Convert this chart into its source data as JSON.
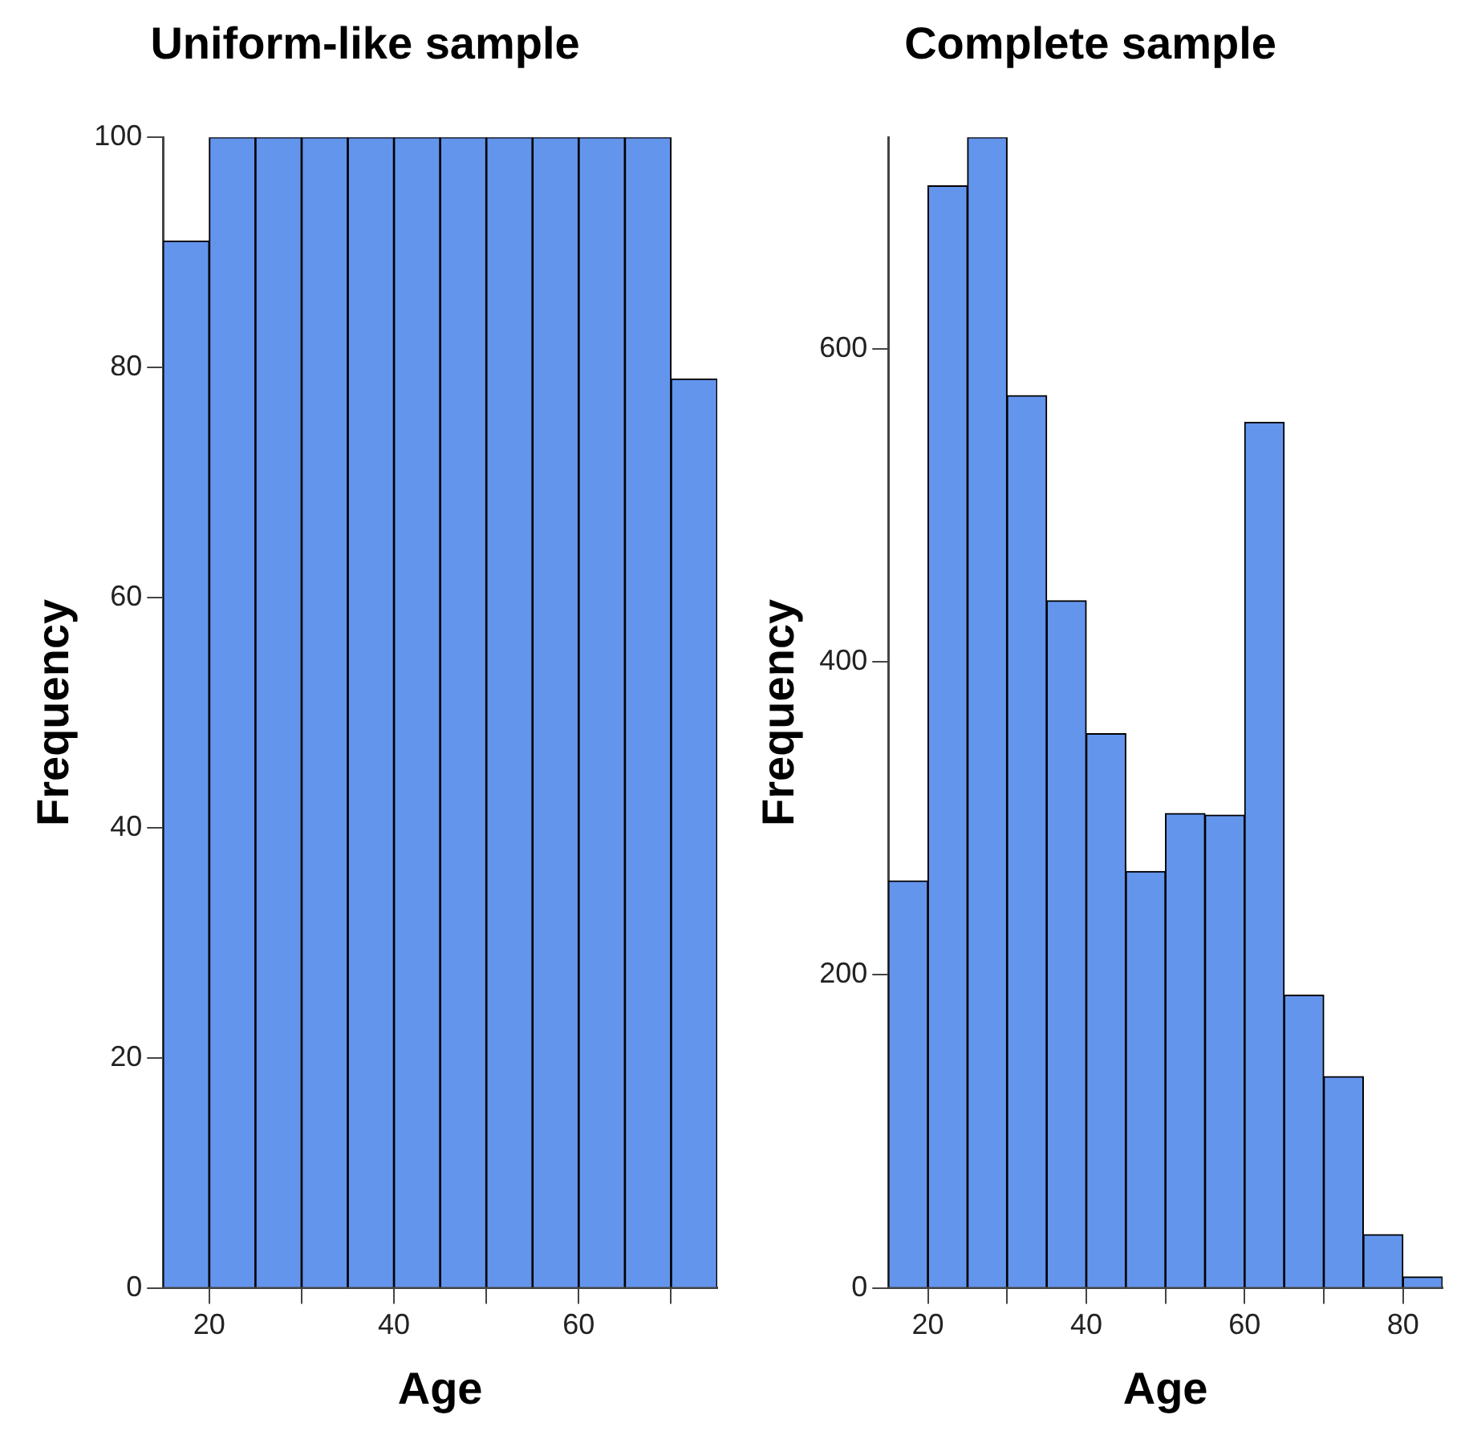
{
  "chart_data": [
    {
      "type": "histogram",
      "title": "Uniform-like sample",
      "xlabel": "Age",
      "ylabel": "Frequency",
      "color": "#6495ed",
      "bins": [
        15,
        20,
        25,
        30,
        35,
        40,
        45,
        50,
        55,
        60,
        65,
        70,
        75
      ],
      "values": [
        91,
        100,
        100,
        100,
        100,
        100,
        100,
        100,
        100,
        100,
        100,
        79
      ],
      "xlim": [
        15,
        75
      ],
      "ylim": [
        0,
        100
      ],
      "xticks": [
        20,
        {
          "value": 30,
          "label": null
        },
        40,
        {
          "value": 50,
          "label": null
        },
        60,
        {
          "value": 70,
          "label": null
        }
      ],
      "yticks": [
        0,
        20,
        40,
        60,
        80,
        100
      ]
    },
    {
      "type": "histogram",
      "title": "Complete sample",
      "xlabel": "Age",
      "ylabel": "Frequency",
      "color": "#6495ed",
      "bins": [
        15,
        20,
        25,
        30,
        35,
        40,
        45,
        50,
        55,
        60,
        65,
        70,
        75,
        80,
        85
      ],
      "values": [
        260,
        704,
        735,
        570,
        439,
        354,
        266,
        303,
        302,
        553,
        187,
        135,
        34,
        7
      ],
      "xlim": [
        15,
        85
      ],
      "ylim": [
        0,
        735
      ],
      "xticks": [
        20,
        {
          "value": 30,
          "label": null
        },
        40,
        {
          "value": 50,
          "label": null
        },
        60,
        {
          "value": 70,
          "label": null
        },
        80
      ],
      "yticks": [
        0,
        200,
        400,
        600
      ]
    }
  ]
}
